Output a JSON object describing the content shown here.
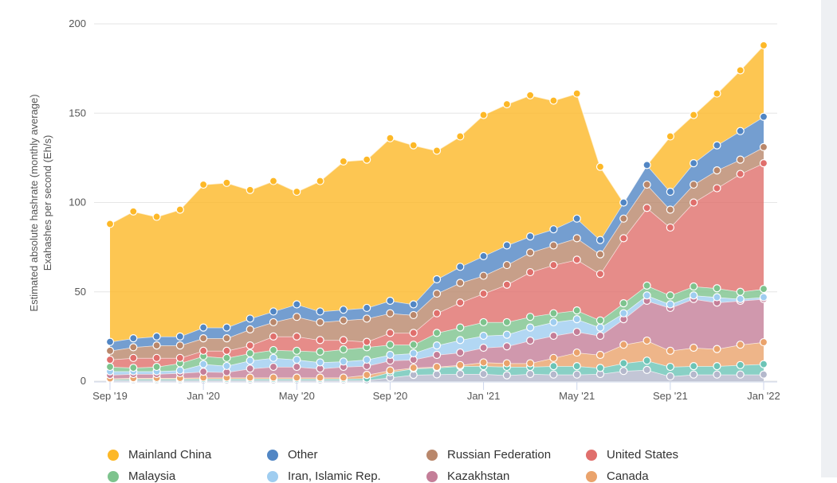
{
  "chart_data": {
    "type": "area",
    "stacked": true,
    "ylabel": [
      "Estimated absolute hashrate (monthly average)",
      "Exahashes per second (Eh/s)"
    ],
    "ylim": [
      0,
      200
    ],
    "yticks": [
      "0",
      "50",
      "100",
      "150",
      "200"
    ],
    "xtick_labels": [
      "Sep '19",
      "Jan '20",
      "May '20",
      "Sep '20",
      "Jan '21",
      "May '21",
      "Sep '21",
      "Jan '22"
    ],
    "x": [
      "2019-09",
      "2019-10",
      "2019-11",
      "2019-12",
      "2020-01",
      "2020-02",
      "2020-03",
      "2020-04",
      "2020-05",
      "2020-06",
      "2020-07",
      "2020-08",
      "2020-09",
      "2020-10",
      "2020-11",
      "2020-12",
      "2021-01",
      "2021-02",
      "2021-03",
      "2021-04",
      "2021-05",
      "2021-06",
      "2021-07",
      "2021-08",
      "2021-09",
      "2021-10",
      "2021-11",
      "2021-12",
      "2022-01"
    ],
    "grid": true,
    "legend_position": "bottom",
    "series": [
      {
        "name": "",
        "color": "#b4b8cc",
        "values": [
          0.5,
          0.5,
          0.5,
          0.5,
          0.5,
          0.5,
          0.5,
          0.5,
          0.5,
          0.5,
          0.5,
          0.5,
          2,
          3.5,
          3.8,
          4,
          4,
          3.3,
          4,
          3.7,
          3.7,
          4,
          5.7,
          6.3,
          2.7,
          3.7,
          3.7,
          3.7,
          3.7
        ]
      },
      {
        "name": "",
        "color": "#6cc4b6",
        "values": [
          0.5,
          0.7,
          0.7,
          0.7,
          0.8,
          0.8,
          0.8,
          0.8,
          0.8,
          0.8,
          0.8,
          1,
          3,
          3.5,
          3.7,
          4.4,
          4.4,
          4.7,
          4,
          4.7,
          4.7,
          3.4,
          4.3,
          5.2,
          5.3,
          4.7,
          4.7,
          5.3,
          5.8
        ]
      },
      {
        "name": "Canada",
        "color": "#eaa36c",
        "values": [
          0.5,
          0.5,
          0.6,
          0.6,
          0.7,
          0.7,
          0.7,
          0.7,
          0.7,
          0.7,
          0.7,
          2,
          1,
          0.5,
          0.5,
          0.6,
          2.1,
          2,
          2,
          4.6,
          7.6,
          7.3,
          10.4,
          11.2,
          9,
          10.3,
          9.6,
          11.4,
          12.3
        ]
      },
      {
        "name": "Kazakhstan",
        "color": "#c47e98",
        "values": [
          2,
          2.3,
          2.2,
          2.7,
          3.3,
          3,
          5,
          6,
          6,
          5,
          6,
          5,
          5.5,
          4.5,
          6.7,
          7,
          8.2,
          9.5,
          12.7,
          12.4,
          11.6,
          10.7,
          14.3,
          22.3,
          24,
          27.3,
          26,
          24.6,
          24.2
        ]
      },
      {
        "name": "Iran, Islamic Rep.",
        "color": "#9fcdf0",
        "values": [
          2,
          1.5,
          1.5,
          1.5,
          4.2,
          3.5,
          4.5,
          5,
          4,
          3.5,
          3,
          3.5,
          3.2,
          3.6,
          5.3,
          7,
          6.7,
          6.5,
          7.3,
          7.6,
          7.1,
          4.6,
          3.3,
          3,
          2,
          2,
          3,
          1,
          1
        ]
      },
      {
        "name": "Malaysia",
        "color": "#7dc38d",
        "values": [
          2.5,
          2,
          2.5,
          4,
          4.5,
          4.5,
          4.1,
          4.4,
          5,
          6,
          6.8,
          7,
          5.7,
          4.8,
          7,
          7,
          7.6,
          7,
          6,
          5,
          4.9,
          4,
          5.6,
          5.5,
          5,
          5,
          5,
          4,
          4.6
        ]
      },
      {
        "name": "United States",
        "color": "#e06f6c",
        "values": [
          4,
          5.5,
          5,
          3,
          3,
          4,
          4.4,
          7.6,
          8,
          6.5,
          5.2,
          3,
          6.6,
          6.6,
          11,
          14,
          16,
          21,
          25,
          27,
          28.4,
          26,
          36.4,
          43.5,
          38,
          47,
          56,
          66,
          70.4
        ]
      },
      {
        "name": "Russian Federation",
        "color": "#b9876b",
        "values": [
          5,
          6,
          7,
          7,
          7,
          7,
          9,
          8,
          11,
          10,
          11,
          13,
          11,
          10,
          11,
          11,
          10,
          11,
          11,
          11,
          12,
          11,
          11,
          13,
          10,
          10,
          10,
          8,
          9
        ]
      },
      {
        "name": "Other",
        "color": "#5186c4",
        "values": [
          5,
          5,
          5,
          5,
          6,
          6,
          6,
          6,
          7,
          6,
          6,
          6,
          7,
          6,
          8,
          9,
          11,
          11,
          9,
          9,
          11,
          8,
          9,
          11,
          10,
          12,
          14,
          16,
          17
        ]
      },
      {
        "name": "Mainland China",
        "color": "#fdb827",
        "values": [
          66,
          71,
          67,
          71,
          80,
          81,
          72,
          73,
          63,
          73,
          83,
          83,
          91,
          89,
          72,
          73,
          79,
          79,
          79,
          72,
          70,
          41,
          null,
          null,
          31,
          27,
          29,
          34,
          40
        ]
      }
    ]
  },
  "legend": [
    {
      "label": "Mainland China",
      "color": "#fdb827"
    },
    {
      "label": "Other",
      "color": "#5186c4"
    },
    {
      "label": "Russian Federation",
      "color": "#b9876b"
    },
    {
      "label": "United States",
      "color": "#e06f6c"
    },
    {
      "label": "Malaysia",
      "color": "#7dc38d"
    },
    {
      "label": "Iran, Islamic Rep.",
      "color": "#9fcdf0"
    },
    {
      "label": "Kazakhstan",
      "color": "#c47e98"
    },
    {
      "label": "Canada",
      "color": "#eaa36c"
    }
  ]
}
